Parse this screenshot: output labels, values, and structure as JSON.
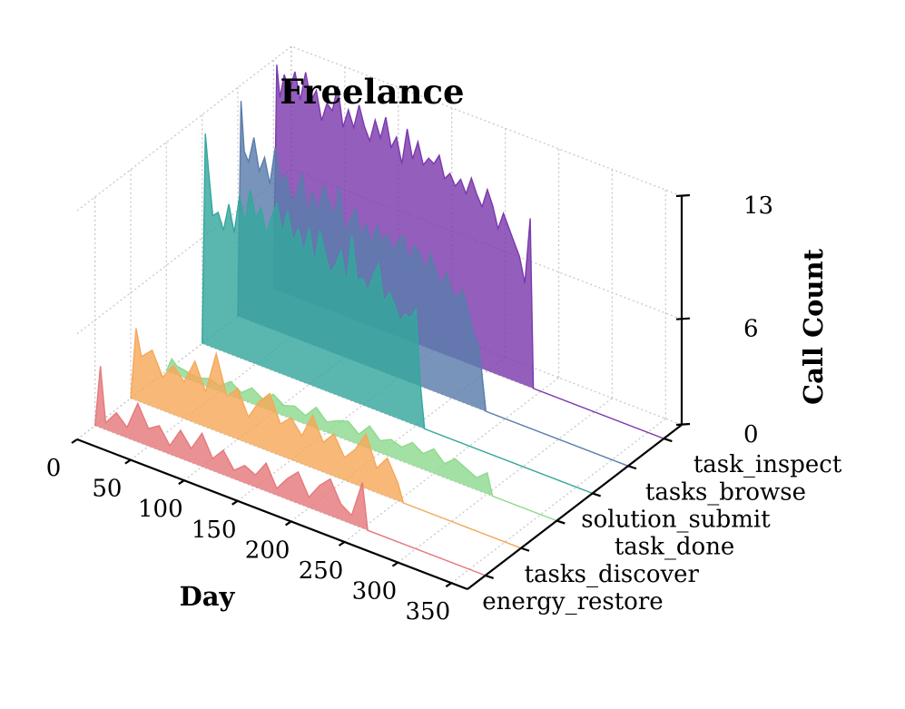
{
  "chart_data": {
    "type": "area",
    "title": "Freelance",
    "xlabel": "Day",
    "ylabel": "",
    "zlabel": "Call Count",
    "xlim": [
      0,
      365
    ],
    "zlim": [
      0,
      13
    ],
    "x_ticks": [
      "0",
      "50",
      "100",
      "150",
      "200",
      "250",
      "300",
      "350"
    ],
    "x_tick_values": [
      0,
      50,
      100,
      150,
      200,
      250,
      300,
      350
    ],
    "z_ticks": [
      "0",
      "6",
      "13"
    ],
    "z_tick_values": [
      0,
      6,
      13
    ],
    "categories": [
      "energy_restore",
      "tasks_discover",
      "task_done",
      "solution_submit",
      "tasks_browse",
      "task_inspect"
    ],
    "series": [
      {
        "name": "energy_restore",
        "color": "#e5797b",
        "x": [
          0,
          5,
          10,
          20,
          30,
          40,
          50,
          60,
          70,
          80,
          90,
          100,
          110,
          120,
          130,
          140,
          150,
          160,
          170,
          180,
          190,
          200,
          210,
          220,
          230,
          240,
          250,
          255,
          365
        ],
        "values": [
          0,
          3.5,
          0.4,
          1.2,
          0.6,
          2.2,
          1.0,
          1.4,
          0.5,
          1.6,
          0.8,
          1.9,
          0.7,
          1.4,
          0.5,
          1.0,
          0.7,
          1.6,
          0.4,
          1.2,
          1.8,
          0.6,
          1.5,
          2.1,
          0.9,
          0.5,
          2.6,
          0,
          0
        ]
      },
      {
        "name": "tasks_discover",
        "color": "#f5a85a",
        "x": [
          0,
          5,
          10,
          20,
          30,
          40,
          50,
          60,
          70,
          80,
          90,
          100,
          110,
          120,
          130,
          140,
          150,
          160,
          170,
          180,
          190,
          200,
          210,
          220,
          230,
          240,
          250,
          255,
          365
        ],
        "values": [
          0,
          4.1,
          2.6,
          3.2,
          1.9,
          2.8,
          2.1,
          3.5,
          2.0,
          4.4,
          2.2,
          2.9,
          1.5,
          2.6,
          3.3,
          1.8,
          2.4,
          1.6,
          3.0,
          1.7,
          2.4,
          1.3,
          2.0,
          3.1,
          1.4,
          2.2,
          1.0,
          0,
          0
        ]
      },
      {
        "name": "task_done",
        "color": "#8fd98f",
        "x": [
          0,
          5,
          10,
          20,
          30,
          40,
          50,
          60,
          70,
          80,
          90,
          100,
          110,
          120,
          130,
          140,
          150,
          160,
          170,
          180,
          190,
          200,
          210,
          220,
          230,
          240,
          250,
          260,
          270,
          280,
          290,
          300,
          305,
          365
        ],
        "values": [
          0,
          0.8,
          0.5,
          0.4,
          0.3,
          0.5,
          0.3,
          0.8,
          0.4,
          0.9,
          0.5,
          1.0,
          0.6,
          0.8,
          0.5,
          1.2,
          0.6,
          0.9,
          1.1,
          0.6,
          1.3,
          0.7,
          1.0,
          0.8,
          1.3,
          0.9,
          1.4,
          0.8,
          1.3,
          1.0,
          0.7,
          1.2,
          0,
          0
        ]
      },
      {
        "name": "solution_submit",
        "color": "#34a79d",
        "x": [
          0,
          3,
          6,
          10,
          15,
          20,
          25,
          30,
          35,
          40,
          45,
          50,
          55,
          60,
          65,
          70,
          75,
          80,
          85,
          90,
          95,
          100,
          105,
          110,
          115,
          120,
          125,
          130,
          135,
          140,
          145,
          150,
          155,
          160,
          165,
          170,
          175,
          180,
          185,
          190,
          195,
          200,
          204,
          208,
          365
        ],
        "values": [
          0,
          12.0,
          10.0,
          7.5,
          7.8,
          6.9,
          8.5,
          7.0,
          9.2,
          7.8,
          9.8,
          8.3,
          9.0,
          7.6,
          8.7,
          9.6,
          8.0,
          9.4,
          7.8,
          8.6,
          7.4,
          8.9,
          7.0,
          9.0,
          7.8,
          6.8,
          7.4,
          8.3,
          6.5,
          9.4,
          7.0,
          7.2,
          6.6,
          7.6,
          8.4,
          6.3,
          7.0,
          6.4,
          5.6,
          6.1,
          6.0,
          6.6,
          2.5,
          0,
          0
        ]
      },
      {
        "name": "tasks_browse",
        "color": "#5a7dab",
        "x": [
          0,
          3,
          6,
          10,
          15,
          20,
          25,
          30,
          35,
          40,
          45,
          50,
          55,
          60,
          65,
          70,
          75,
          80,
          85,
          90,
          95,
          100,
          105,
          110,
          115,
          120,
          125,
          130,
          135,
          140,
          145,
          150,
          155,
          160,
          165,
          170,
          175,
          180,
          185,
          190,
          195,
          200,
          205,
          210,
          215,
          220,
          225,
          228,
          232,
          365
        ],
        "values": [
          0,
          12.3,
          9.5,
          9.0,
          10.5,
          8.7,
          9.6,
          8.2,
          10.4,
          8.5,
          9.1,
          7.7,
          8.3,
          9.5,
          7.4,
          8.7,
          7.6,
          9.3,
          8.5,
          7.8,
          9.6,
          7.0,
          7.9,
          8.7,
          7.3,
          8.0,
          7.0,
          8.2,
          7.4,
          7.9,
          7.1,
          7.8,
          8.2,
          6.9,
          7.9,
          7.5,
          6.7,
          7.8,
          6.9,
          6.2,
          7.0,
          6.1,
          5.8,
          6.4,
          5.4,
          4.2,
          3.6,
          2.2,
          0,
          0
        ]
      },
      {
        "name": "task_inspect",
        "color": "#7b3aad",
        "x": [
          0,
          3,
          6,
          10,
          15,
          20,
          25,
          30,
          35,
          40,
          45,
          50,
          55,
          60,
          65,
          70,
          75,
          80,
          85,
          90,
          95,
          100,
          105,
          110,
          115,
          120,
          125,
          130,
          135,
          140,
          145,
          150,
          155,
          160,
          165,
          170,
          175,
          180,
          185,
          190,
          195,
          200,
          205,
          210,
          215,
          220,
          225,
          230,
          235,
          240,
          243,
          365
        ],
        "values": [
          0,
          12.8,
          11.0,
          12.4,
          11.6,
          12.8,
          11.3,
          13.0,
          11.5,
          12.2,
          10.6,
          11.7,
          11.4,
          12.9,
          10.7,
          11.8,
          10.9,
          12.3,
          11.2,
          10.5,
          11.8,
          10.9,
          12.2,
          10.6,
          11.3,
          9.9,
          12.0,
          10.4,
          11.5,
          10.3,
          10.8,
          10.6,
          11.2,
          10.0,
          10.4,
          9.8,
          10.3,
          9.6,
          10.6,
          9.8,
          9.2,
          10.3,
          9.5,
          8.3,
          9.3,
          8.6,
          7.9,
          7.2,
          5.8,
          9.6,
          0,
          0
        ]
      }
    ]
  }
}
